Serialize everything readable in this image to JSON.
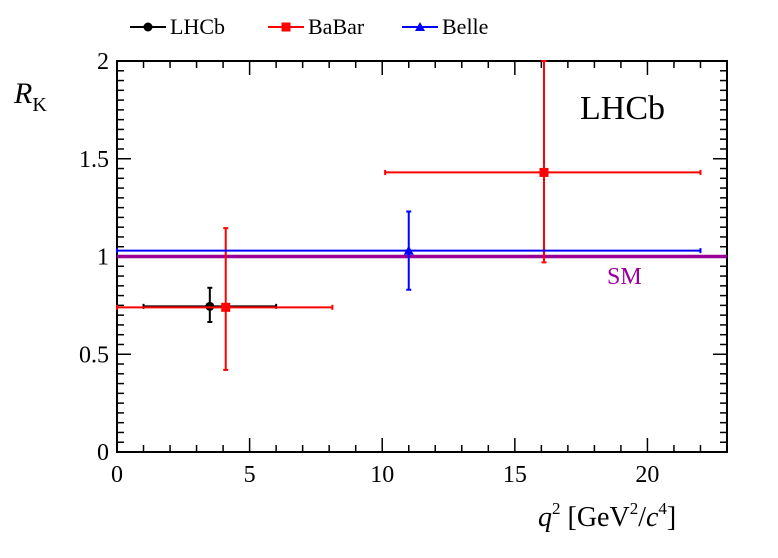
{
  "chart_data": {
    "type": "scatter",
    "title": "",
    "experiment_label": "LHCb",
    "xlabel": {
      "base": "q",
      "sup": "2",
      "unit_open": " [GeV",
      "unit_sup1": "2",
      "unit_slash": "/",
      "unit_c": "c",
      "unit_sup2": "4",
      "unit_close": "]"
    },
    "ylabel": {
      "base": "R",
      "sub": "K"
    },
    "xlim": [
      0,
      23
    ],
    "ylim": [
      0,
      2
    ],
    "xticks": [
      0,
      5,
      10,
      15,
      20
    ],
    "xtick_labels": [
      "0",
      "5",
      "10",
      "15",
      "20"
    ],
    "yticks": [
      0,
      0.5,
      1,
      1.5,
      2
    ],
    "ytick_labels": [
      "0",
      "0.5",
      "1",
      "1.5",
      "2"
    ],
    "grid": false,
    "legend_position": "top",
    "reference_line": {
      "name": "SM",
      "y": 1.0,
      "color": "#990099"
    },
    "series": [
      {
        "name": "LHCb",
        "color": "#000000",
        "marker": "circle",
        "points": [
          {
            "x": 3.5,
            "xerr": [
              1.0,
              6.0
            ],
            "y": 0.745,
            "yerr": [
              0.665,
              0.84
            ]
          }
        ]
      },
      {
        "name": "BaBar",
        "color": "#ff0000",
        "marker": "square",
        "points": [
          {
            "x": 4.1,
            "xerr": [
              0.0,
              8.12
            ],
            "y": 0.74,
            "yerr": [
              0.42,
              1.145
            ]
          },
          {
            "x": 16.1,
            "xerr": [
              10.11,
              22.0
            ],
            "y": 1.43,
            "yerr": [
              0.97,
              2.0
            ]
          }
        ]
      },
      {
        "name": "Belle",
        "color": "#0000ff",
        "marker": "triangle",
        "points": [
          {
            "x": 11.0,
            "xerr": [
              0.0,
              22.0
            ],
            "y": 1.03,
            "yerr": [
              0.83,
              1.23
            ]
          }
        ]
      }
    ]
  }
}
